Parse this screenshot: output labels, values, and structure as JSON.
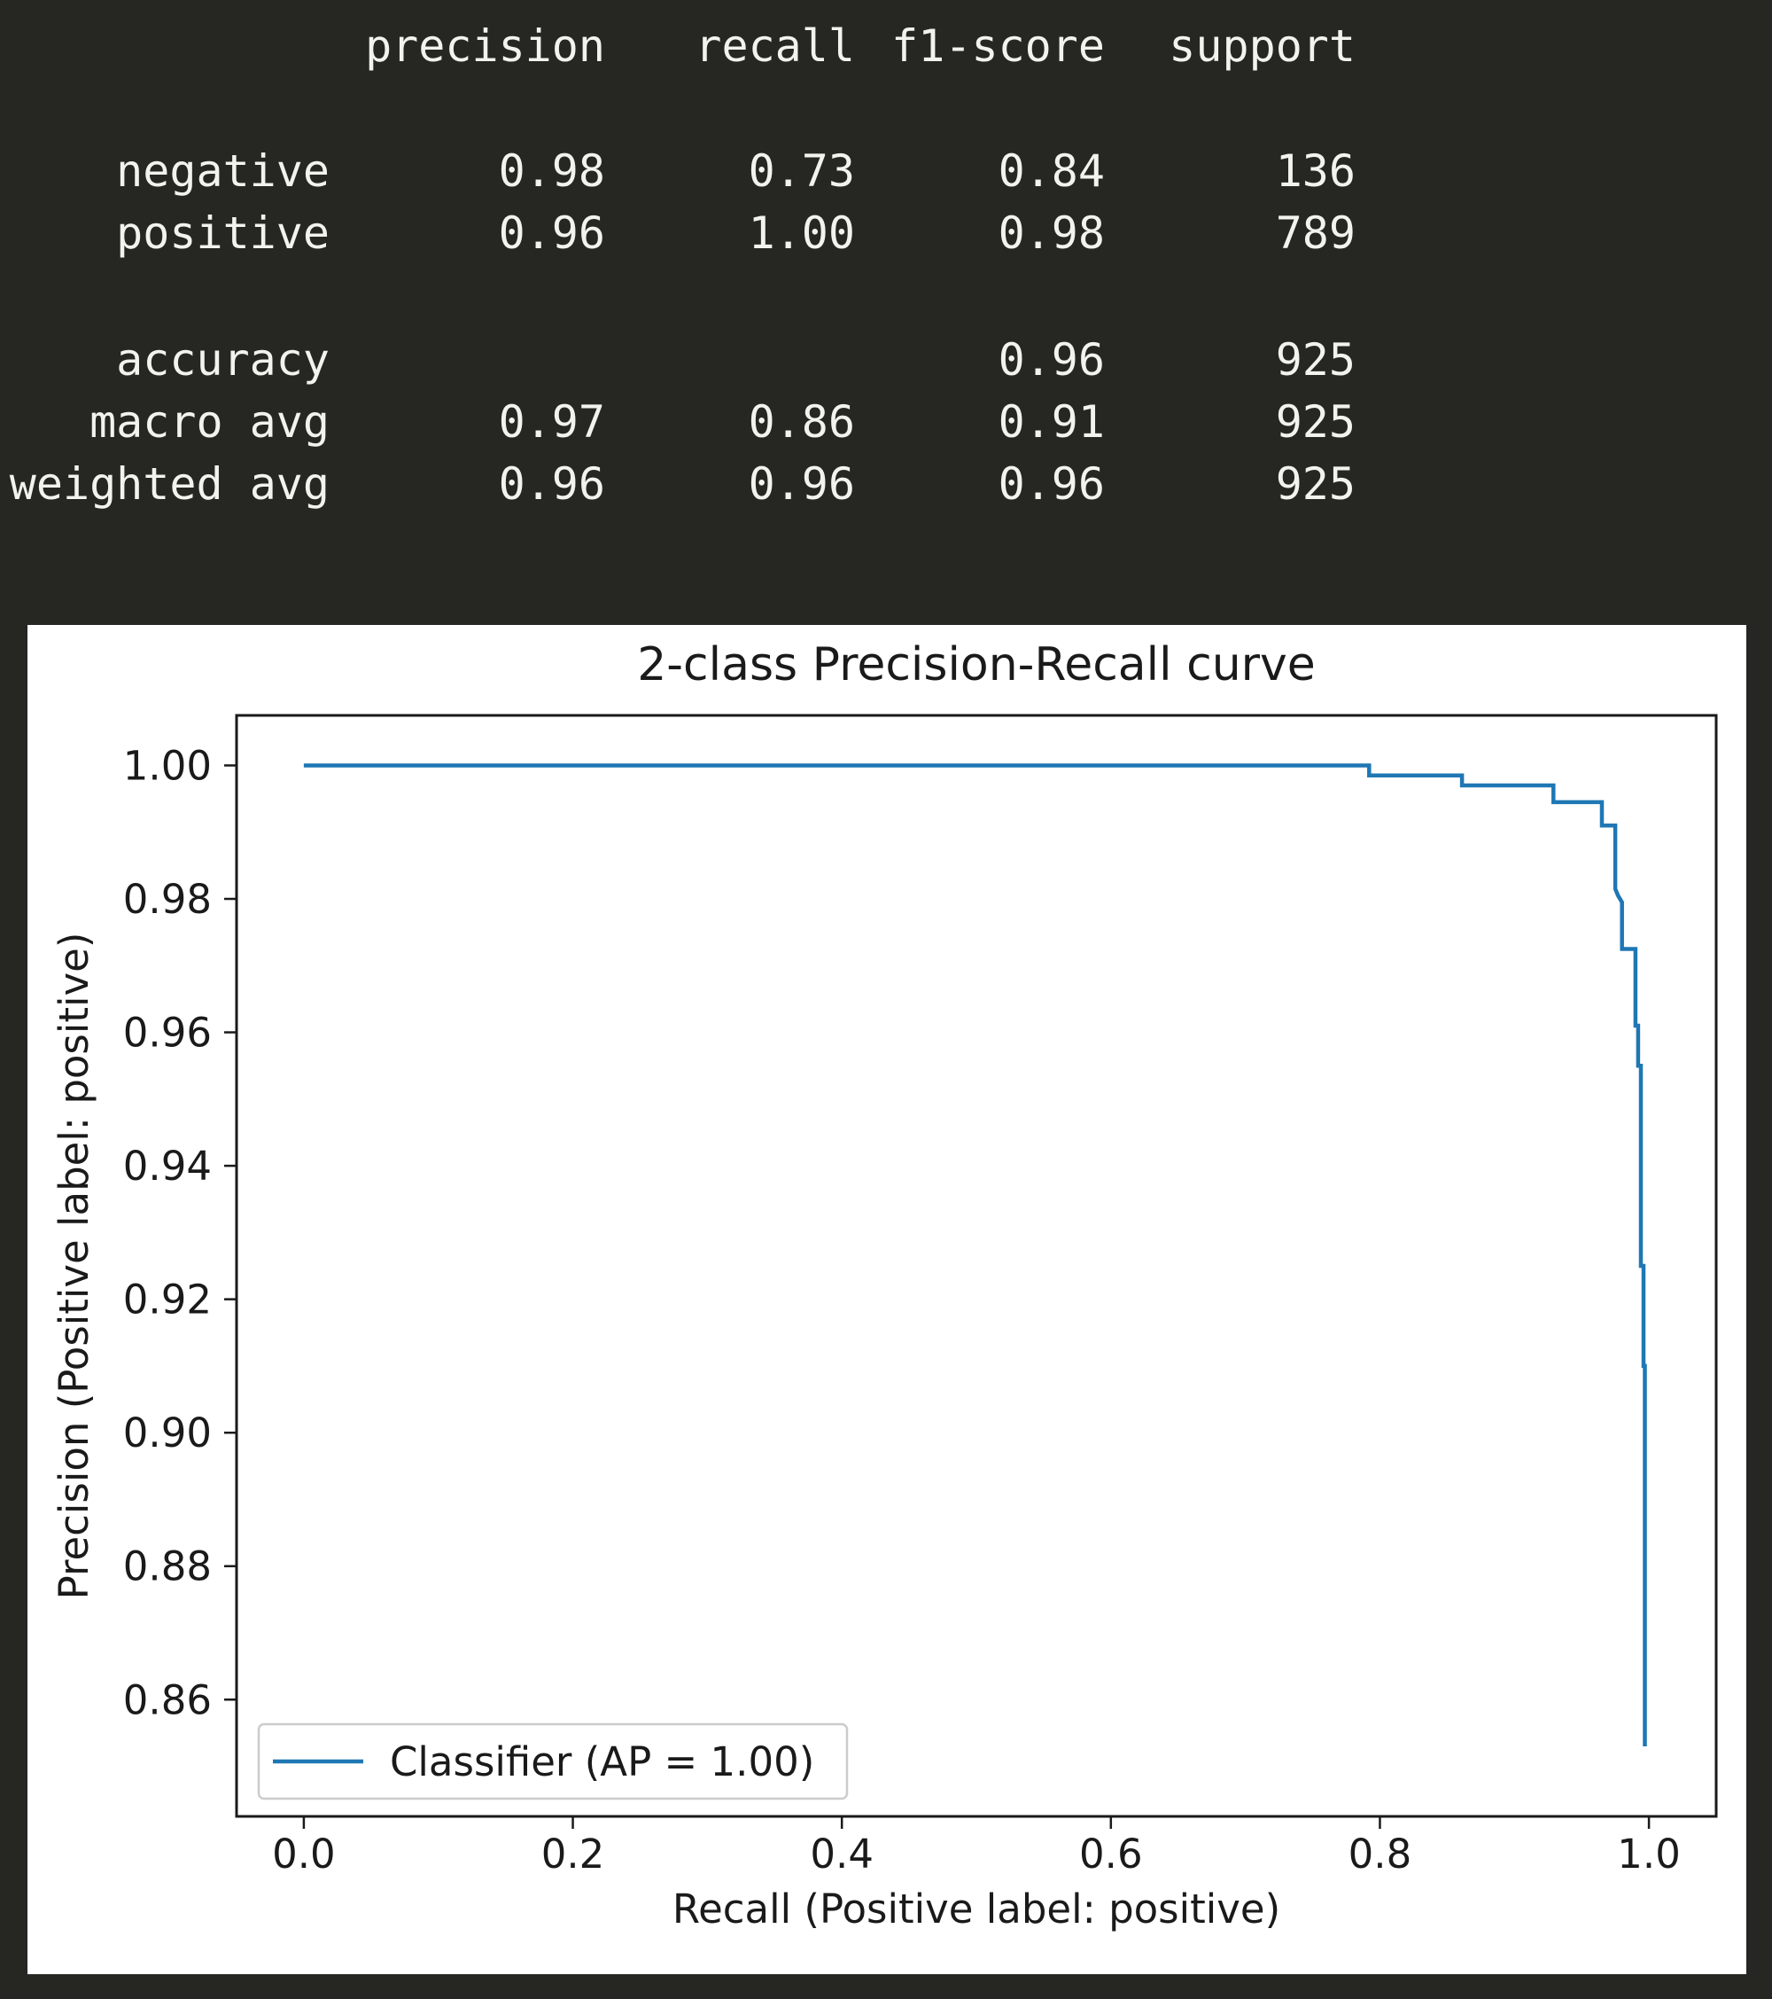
{
  "report": {
    "headers": [
      "precision",
      "recall",
      "f1-score",
      "support"
    ],
    "rows": [
      {
        "label": "negative",
        "precision": "0.98",
        "recall": "0.73",
        "f1": "0.84",
        "support": "136"
      },
      {
        "label": "positive",
        "precision": "0.96",
        "recall": "1.00",
        "f1": "0.98",
        "support": "789"
      },
      {
        "label": "accuracy",
        "precision": "",
        "recall": "",
        "f1": "0.96",
        "support": "925"
      },
      {
        "label": "macro avg",
        "precision": "0.97",
        "recall": "0.86",
        "f1": "0.91",
        "support": "925"
      },
      {
        "label": "weighted avg",
        "precision": "0.96",
        "recall": "0.96",
        "f1": "0.96",
        "support": "925"
      }
    ]
  },
  "chart_data": {
    "type": "line",
    "title": "2-class Precision-Recall curve",
    "xlabel": "Recall (Positive label: positive)",
    "ylabel": "Precision (Positive label: positive)",
    "xlim": [
      -0.05,
      1.05
    ],
    "ylim": [
      0.8425,
      1.0075
    ],
    "xticks": [
      "0.0",
      "0.2",
      "0.4",
      "0.6",
      "0.8",
      "1.0"
    ],
    "yticks": [
      "0.86",
      "0.88",
      "0.90",
      "0.92",
      "0.94",
      "0.96",
      "0.98",
      "1.00"
    ],
    "grid": false,
    "legend_position": "lower-left",
    "series": [
      {
        "name": "Classifier (AP = 1.00)",
        "color": "#1f77b4",
        "step": true,
        "points": [
          [
            0.0,
            1.0
          ],
          [
            0.792,
            1.0
          ],
          [
            0.792,
            0.9985
          ],
          [
            0.861,
            0.9985
          ],
          [
            0.861,
            0.997
          ],
          [
            0.929,
            0.997
          ],
          [
            0.929,
            0.9945
          ],
          [
            0.965,
            0.9945
          ],
          [
            0.965,
            0.991
          ],
          [
            0.975,
            0.991
          ],
          [
            0.975,
            0.9815
          ],
          [
            0.977,
            0.9805
          ],
          [
            0.98,
            0.9795
          ],
          [
            0.98,
            0.9725
          ],
          [
            0.99,
            0.9725
          ],
          [
            0.99,
            0.961
          ],
          [
            0.992,
            0.961
          ],
          [
            0.992,
            0.955
          ],
          [
            0.994,
            0.955
          ],
          [
            0.994,
            0.925
          ],
          [
            0.996,
            0.925
          ],
          [
            0.996,
            0.91
          ],
          [
            0.997,
            0.91
          ],
          [
            0.997,
            0.853
          ]
        ]
      }
    ]
  }
}
